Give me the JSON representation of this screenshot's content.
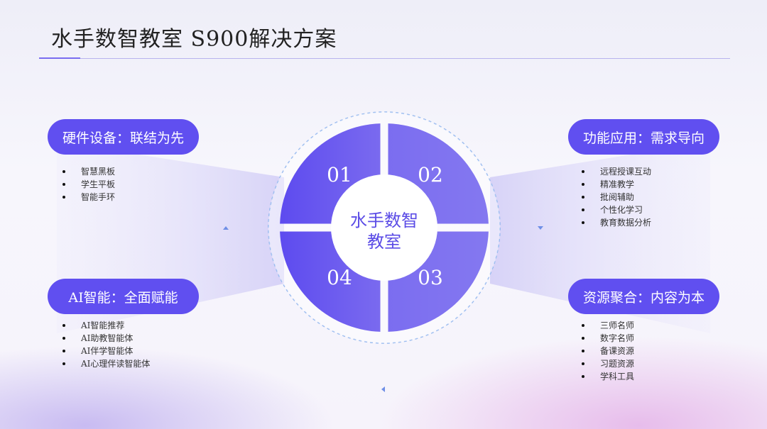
{
  "title": "水手数智教室 S900解决方案",
  "center": {
    "label_line1": "水手数智",
    "label_line2": "教室",
    "quadrants": [
      "01",
      "02",
      "03",
      "04"
    ]
  },
  "sections": [
    {
      "id": "hardware",
      "heading": "硬件设备：联结为先",
      "items": [
        "智慧黑板",
        "学生平板",
        "智能手环"
      ]
    },
    {
      "id": "function",
      "heading": "功能应用：需求导向",
      "items": [
        "远程授课互动",
        "精准教学",
        "批阅辅助",
        "个性化学习",
        "教育数据分析"
      ]
    },
    {
      "id": "ai",
      "heading": "AI智能：全面赋能",
      "items": [
        "AI智能推荐",
        "AI助教智能体",
        "AI伴学智能体",
        "AI心理伴读智能体"
      ]
    },
    {
      "id": "resource",
      "heading": "资源聚合：内容为本",
      "items": [
        "三师名师",
        "数字名师",
        "备课资源",
        "习题资源",
        "学科工具"
      ]
    }
  ],
  "colors": {
    "accent": "#604ff0",
    "quadrant_dark": "#6350ef",
    "quadrant_light": "#8176f0",
    "dashed_ring": "#8fb4ee"
  }
}
